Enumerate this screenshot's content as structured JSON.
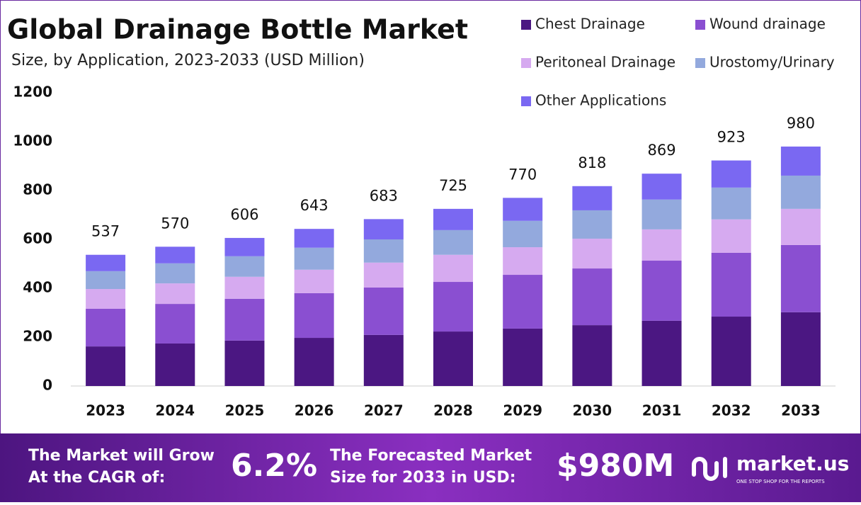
{
  "chart_data": {
    "type": "stacked_bar",
    "title": "Global Drainage Bottle Market",
    "subtitle": "Size, by Application, 2023-2033 (USD Million)",
    "categories": [
      "2023",
      "2024",
      "2025",
      "2026",
      "2027",
      "2028",
      "2029",
      "2030",
      "2031",
      "2032",
      "2033"
    ],
    "series": [
      {
        "name": "Chest Drainage",
        "color": "#4b1782",
        "values": [
          162,
          174,
          186,
          197,
          209,
          223,
          235,
          249,
          267,
          284,
          302
        ]
      },
      {
        "name": "Wound drainage",
        "color": "#8a4fd1",
        "values": [
          154,
          162,
          171,
          183,
          194,
          203,
          220,
          232,
          246,
          261,
          275
        ]
      },
      {
        "name": "Peritoneal Drainage",
        "color": "#d6aaf0",
        "values": [
          81,
          84,
          90,
          96,
          102,
          111,
          113,
          122,
          128,
          137,
          148
        ]
      },
      {
        "name": "Urostomy/Urinary",
        "color": "#93a9dd",
        "values": [
          73,
          82,
          84,
          90,
          95,
          101,
          108,
          116,
          122,
          130,
          136
        ]
      },
      {
        "name": "Other Applications",
        "color": "#7a68f2",
        "values": [
          67,
          68,
          75,
          77,
          83,
          87,
          94,
          99,
          106,
          111,
          119
        ]
      }
    ],
    "totals": [
      537,
      570,
      606,
      643,
      683,
      725,
      770,
      818,
      869,
      923,
      980
    ],
    "ylim": [
      0,
      1200
    ],
    "yticks": [
      0,
      200,
      400,
      600,
      800,
      1000,
      1200
    ]
  },
  "footer": {
    "cagr_line1": "The Market will Grow",
    "cagr_line2": "At the CAGR of:",
    "cagr_value": "6.2%",
    "forecast_line1": "The Forecasted Market",
    "forecast_line2": "Size for 2033 in USD:",
    "forecast_value": "$980M",
    "brand": "market.us",
    "tagline": "ONE STOP SHOP FOR THE REPORTS"
  }
}
